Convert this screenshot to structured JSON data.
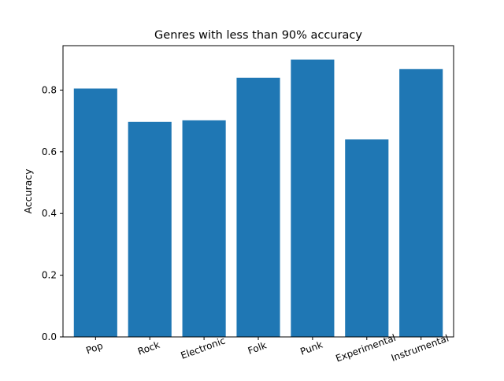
{
  "chart_data": {
    "type": "bar",
    "title": "Genres with less than 90% accuracy",
    "xlabel": "",
    "ylabel": "Accuracy",
    "categories": [
      "Pop",
      "Rock",
      "Electronic",
      "Folk",
      "Punk",
      "Experimental",
      "Instrumental"
    ],
    "values": [
      0.805,
      0.697,
      0.702,
      0.84,
      0.899,
      0.64,
      0.868
    ],
    "ylim": [
      0,
      0.944
    ],
    "yticks": [
      0.0,
      0.2,
      0.4,
      0.6,
      0.8
    ],
    "ytick_labels": [
      "0.0",
      "0.2",
      "0.4",
      "0.6",
      "0.8"
    ],
    "bar_color": "#1f77b4",
    "grid": false,
    "xtick_rotation_deg": -20
  }
}
